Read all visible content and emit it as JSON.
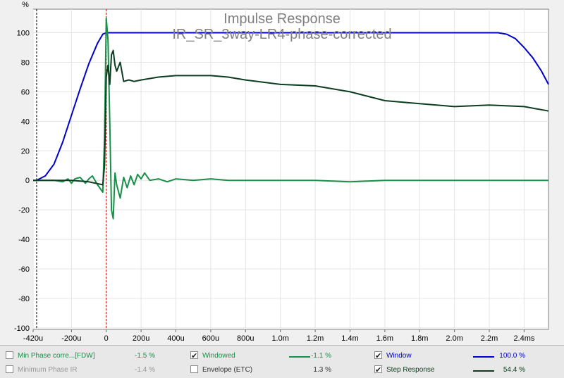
{
  "chart_data": {
    "type": "line",
    "title": "Impulse Response",
    "subtitle": "IR_SR_3way-LR4-phase-corrected",
    "ylabel": "%",
    "xlabel": "",
    "xlim": [
      -0.00042,
      0.00254
    ],
    "ylim": [
      -101,
      116
    ],
    "x_ticks": [
      -0.00042,
      -0.0002,
      0,
      0.0002,
      0.0004,
      0.0006,
      0.0008,
      0.001,
      0.0012,
      0.0014,
      0.0016,
      0.0018,
      0.002,
      0.0022,
      0.0024
    ],
    "x_tick_labels": [
      "-420u",
      "-200u",
      "0",
      "200u",
      "400u",
      "600u",
      "800u",
      "1.0m",
      "1.2m",
      "1.4m",
      "1.6m",
      "1.8m",
      "2.0m",
      "2.2m",
      "2.4ms"
    ],
    "y_ticks": [
      -100,
      -80,
      -60,
      -40,
      -20,
      0,
      20,
      40,
      60,
      80,
      100
    ],
    "y_tick_labels": [
      "-100",
      "-80",
      "-60",
      "-40",
      "-20",
      "0",
      "20",
      "40",
      "60",
      "80",
      "100"
    ],
    "grid": true,
    "markers": [
      {
        "x": -0.0004,
        "color": "#000000"
      },
      {
        "x": 0,
        "color": "#cc0000"
      }
    ],
    "series": [
      {
        "name": "Window",
        "color": "#0000cc",
        "x": [
          -0.00042,
          -0.0004,
          -0.00035,
          -0.0003,
          -0.00025,
          -0.0002,
          -0.00015,
          -0.0001,
          -5e-05,
          -2e-05,
          0,
          0.0022,
          0.00225,
          0.0023,
          0.00235,
          0.0024,
          0.00245,
          0.0025,
          0.00254
        ],
        "values": [
          0,
          0,
          3,
          11,
          26,
          44,
          62,
          79,
          93,
          99,
          100,
          100,
          100,
          99,
          96,
          90,
          83,
          74,
          65
        ]
      },
      {
        "name": "Windowed",
        "color": "#1a8f4a",
        "x": [
          -0.00042,
          -0.0003,
          -0.00025,
          -0.00022,
          -0.0002,
          -0.00018,
          -0.00015,
          -0.00012,
          -0.0001,
          -8e-05,
          -5e-05,
          -2e-05,
          -1e-05,
          0,
          1e-05,
          2e-05,
          3e-05,
          4e-05,
          5e-05,
          6e-05,
          8e-05,
          0.0001,
          0.00012,
          0.00014,
          0.00016,
          0.00018,
          0.0002,
          0.00022,
          0.00025,
          0.0003,
          0.00035,
          0.0004,
          0.0005,
          0.0006,
          0.0007,
          0.0008,
          0.001,
          0.0012,
          0.0014,
          0.0016,
          0.002,
          0.0022,
          0.00254
        ],
        "values": [
          0,
          0,
          -1,
          1,
          -2,
          1,
          2,
          -2,
          1,
          3,
          -3,
          -8,
          30,
          110,
          95,
          40,
          -20,
          -26,
          5,
          -3,
          -12,
          2,
          -5,
          3,
          -3,
          4,
          1,
          5,
          0,
          1,
          -1,
          1,
          0,
          1,
          0,
          0,
          0,
          0,
          -1,
          0,
          0,
          0,
          0
        ]
      },
      {
        "name": "Step Response",
        "color": "#0d3d20",
        "x": [
          -0.00042,
          -0.0003,
          -0.0002,
          -0.0001,
          -2e-05,
          -1e-05,
          0,
          1e-05,
          2e-05,
          3e-05,
          4e-05,
          5e-05,
          6e-05,
          8e-05,
          0.0001,
          0.00013,
          0.00016,
          0.0002,
          0.0003,
          0.0004,
          0.0005,
          0.0006,
          0.0007,
          0.0008,
          0.001,
          0.0012,
          0.0014,
          0.0016,
          0.0018,
          0.002,
          0.0022,
          0.0024,
          0.00254
        ],
        "values": [
          0,
          0,
          0,
          -1,
          -3,
          10,
          70,
          78,
          65,
          85,
          88,
          78,
          74,
          80,
          67,
          68,
          67,
          68,
          70,
          71,
          71,
          71,
          70,
          68,
          65,
          64,
          60,
          54,
          52,
          50,
          51,
          50,
          47
        ]
      }
    ]
  },
  "legend": {
    "items": [
      {
        "label": "Min Phase corre...[FDW]",
        "value": "-1.5 %",
        "checked": false,
        "enabled": true,
        "color": "#1a8f4a"
      },
      {
        "label": "Minimum Phase IR",
        "value": "-1.4 %",
        "checked": false,
        "enabled": false,
        "color": "#999999"
      },
      {
        "label": "Windowed",
        "value": "-1.1 %",
        "checked": true,
        "enabled": true,
        "color": "#1a8f4a"
      },
      {
        "label": "Envelope (ETC)",
        "value": "1.3 %",
        "checked": false,
        "enabled": true,
        "color": "#333333"
      },
      {
        "label": "Window",
        "value": "100.0 %",
        "checked": true,
        "enabled": true,
        "color": "#0000cc"
      },
      {
        "label": "Step Response",
        "value": "54.4 %",
        "checked": true,
        "enabled": true,
        "color": "#0d3d20"
      }
    ]
  }
}
